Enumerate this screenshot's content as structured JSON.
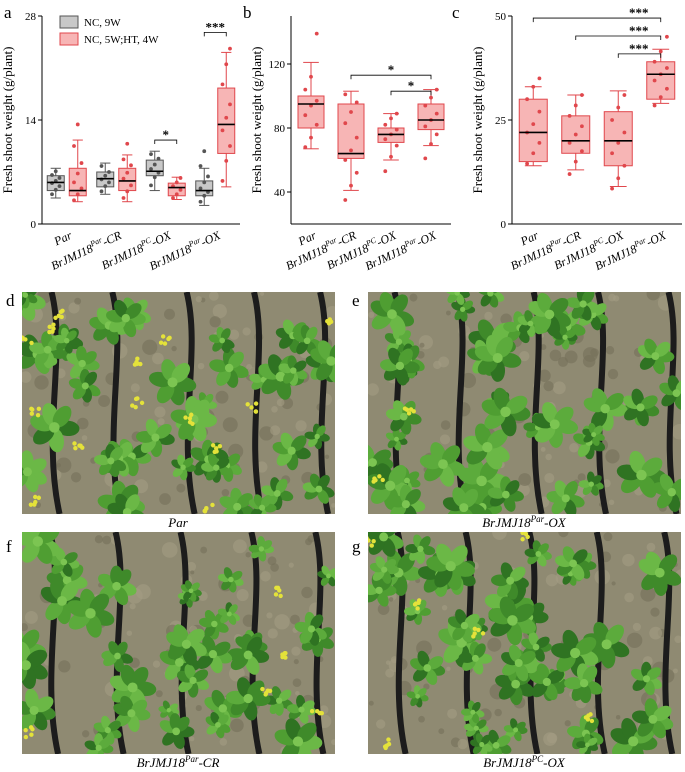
{
  "panels": {
    "a": {
      "label": "a"
    },
    "b": {
      "label": "b"
    },
    "c": {
      "label": "c"
    }
  },
  "legend": {
    "nc9w": "NC, 9W",
    "nc5w": "NC, 5W;HT, 4W"
  },
  "colors": {
    "gray_fill": "#c8c8c8",
    "gray_stroke": "#555555",
    "red_fill": "#f7b5b5",
    "red_stroke": "#e0474c",
    "median": "#000000"
  },
  "chart_data": [
    {
      "panel": "a",
      "type": "box",
      "ylabel": "Fresh shoot weight (g/plant)",
      "ylim": [
        0,
        28
      ],
      "yticks": [
        0,
        14,
        28
      ],
      "categories": [
        {
          "base": "Par",
          "sup": "",
          "suffix": ""
        },
        {
          "base": "BrJMJ18",
          "sup": "Par",
          "suffix": "-CR"
        },
        {
          "base": "BrJMJ18",
          "sup": "PC",
          "suffix": "-OX"
        },
        {
          "base": "BrJMJ18",
          "sup": "Par",
          "suffix": "-OX"
        }
      ],
      "series": [
        {
          "name": "NC, 9W",
          "color": "gray",
          "boxes": [
            {
              "min": 3.5,
              "q1": 4.5,
              "median": 5.6,
              "q3": 6.5,
              "max": 7.5,
              "points": [
                4.0,
                4.6,
                5.1,
                5.5,
                5.8,
                6.2,
                6.6,
                7.1
              ]
            },
            {
              "min": 4.0,
              "q1": 5.0,
              "median": 6.1,
              "q3": 7.0,
              "max": 8.2,
              "points": [
                4.4,
                5.1,
                5.6,
                6.0,
                6.5,
                7.0,
                7.8
              ]
            },
            {
              "min": 4.5,
              "q1": 6.5,
              "median": 7.1,
              "q3": 8.6,
              "max": 9.8,
              "points": [
                5.2,
                6.3,
                6.9,
                7.4,
                8.0,
                8.8,
                9.4
              ]
            },
            {
              "min": 2.5,
              "q1": 3.8,
              "median": 4.5,
              "q3": 5.8,
              "max": 7.5,
              "points": [
                3.0,
                3.8,
                4.3,
                4.8,
                5.6,
                6.4,
                7.8,
                9.8
              ]
            }
          ]
        },
        {
          "name": "NC, 5W;HT, 4W",
          "color": "red",
          "boxes": [
            {
              "min": 3.0,
              "q1": 3.8,
              "median": 4.5,
              "q3": 7.5,
              "max": 11.3,
              "points": [
                3.2,
                4.0,
                4.8,
                5.6,
                6.8,
                8.2,
                10.5,
                13.4
              ]
            },
            {
              "min": 3.0,
              "q1": 4.5,
              "median": 5.8,
              "q3": 7.5,
              "max": 9.3,
              "points": [
                3.5,
                4.4,
                5.2,
                6.1,
                6.9,
                7.9,
                8.7,
                10.8
              ]
            },
            {
              "min": 3.3,
              "q1": 3.8,
              "median": 4.9,
              "q3": 5.5,
              "max": 6.3,
              "points": [
                3.5,
                4.0,
                4.6,
                5.1,
                5.6,
                6.2
              ]
            },
            {
              "min": 5.0,
              "q1": 9.5,
              "median": 13.4,
              "q3": 18.3,
              "max": 23.1,
              "points": [
                5.8,
                8.5,
                10.5,
                12.6,
                14.3,
                16.1,
                18.8,
                21.5,
                23.6
              ]
            }
          ]
        }
      ],
      "significance": [
        {
          "from": 4,
          "to": 5,
          "label": "*"
        },
        {
          "from": 6,
          "to": 7,
          "label": "***"
        }
      ]
    },
    {
      "panel": "b",
      "type": "box",
      "ylabel": "Fresh shoot weight (g/plant)",
      "ylim": [
        20,
        150
      ],
      "yticks": [
        40,
        80,
        120
      ],
      "categories": [
        {
          "base": "Par",
          "sup": "",
          "suffix": ""
        },
        {
          "base": "BrJMJ18",
          "sup": "Par",
          "suffix": "-CR"
        },
        {
          "base": "BrJMJ18",
          "sup": "PC",
          "suffix": "-OX"
        },
        {
          "base": "BrJMJ18",
          "sup": "Par",
          "suffix": "-OX"
        }
      ],
      "series": [
        {
          "name": "",
          "color": "red",
          "boxes": [
            {
              "min": 67,
              "q1": 80,
              "median": 95,
              "q3": 100,
              "max": 121,
              "points": [
                68,
                74,
                82,
                88,
                94,
                97,
                104,
                112,
                139
              ]
            },
            {
              "min": 41,
              "q1": 61,
              "median": 64,
              "q3": 95,
              "max": 103,
              "points": [
                35,
                44,
                52,
                60,
                66,
                74,
                83,
                90,
                96,
                101
              ]
            },
            {
              "min": 60,
              "q1": 71,
              "median": 76,
              "q3": 80,
              "max": 89,
              "points": [
                53,
                62,
                69,
                73,
                76,
                79,
                82,
                86,
                89
              ]
            },
            {
              "min": 69,
              "q1": 79,
              "median": 85,
              "q3": 95,
              "max": 104,
              "points": [
                61,
                70,
                76,
                81,
                85,
                89,
                94,
                99,
                104
              ]
            }
          ]
        }
      ],
      "significance": [
        {
          "from": 1,
          "to": 3,
          "label": "*"
        },
        {
          "from": 2,
          "to": 3,
          "label": "*"
        }
      ]
    },
    {
      "panel": "c",
      "type": "box",
      "ylabel": "Fresh shoot weight (g/plant)",
      "ylim": [
        0,
        50
      ],
      "yticks": [
        0,
        25,
        50
      ],
      "categories": [
        {
          "base": "Par",
          "sup": "",
          "suffix": ""
        },
        {
          "base": "BrJMJ18",
          "sup": "Par",
          "suffix": "-CR"
        },
        {
          "base": "BrJMJ18",
          "sup": "PC",
          "suffix": "-OX"
        },
        {
          "base": "BrJMJ18",
          "sup": "Par",
          "suffix": "-OX"
        }
      ],
      "series": [
        {
          "name": "",
          "color": "red",
          "boxes": [
            {
              "min": 14,
              "q1": 15,
              "median": 22,
              "q3": 30,
              "max": 33,
              "points": [
                14.5,
                17,
                19.5,
                22,
                24,
                27,
                30,
                33,
                35
              ]
            },
            {
              "min": 13,
              "q1": 17,
              "median": 20,
              "q3": 26,
              "max": 31,
              "points": [
                12,
                15,
                17.5,
                19.5,
                21.5,
                23.5,
                26,
                28.5,
                31
              ]
            },
            {
              "min": 9,
              "q1": 14,
              "median": 20,
              "q3": 27,
              "max": 32,
              "points": [
                8.5,
                11,
                14,
                17,
                19.5,
                22,
                25,
                28,
                31
              ]
            },
            {
              "min": 29,
              "q1": 30,
              "median": 36,
              "q3": 39,
              "max": 42,
              "points": [
                28.5,
                30.5,
                32.5,
                34.5,
                36,
                37.5,
                39,
                41.5,
                45
              ]
            }
          ]
        }
      ],
      "significance": [
        {
          "from": 0,
          "to": 3,
          "label": "***"
        },
        {
          "from": 1,
          "to": 3,
          "label": "***"
        },
        {
          "from": 2,
          "to": 3,
          "label": "***"
        }
      ]
    }
  ],
  "photos": [
    {
      "label": "d",
      "caption_base": "Par",
      "caption_sup": "",
      "caption_suffix": ""
    },
    {
      "label": "e",
      "caption_base": "BrJMJ18",
      "caption_sup": "Par",
      "caption_suffix": "-OX"
    },
    {
      "label": "f",
      "caption_base": "BrJMJ18",
      "caption_sup": "Par",
      "caption_suffix": "-CR"
    },
    {
      "label": "g",
      "caption_base": "BrJMJ18",
      "caption_sup": "PC",
      "caption_suffix": "-OX"
    }
  ]
}
